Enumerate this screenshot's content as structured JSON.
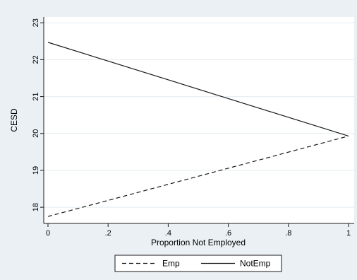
{
  "chart_data": {
    "type": "line",
    "xlabel": "Proportion Not Employed",
    "ylabel": "CESD",
    "xlim": [
      0,
      1
    ],
    "ylim": [
      17.6,
      23.1
    ],
    "x_ticks": [
      {
        "value": 0,
        "label": "0"
      },
      {
        "value": 0.2,
        "label": ".2"
      },
      {
        "value": 0.4,
        "label": ".4"
      },
      {
        "value": 0.6,
        "label": ".6"
      },
      {
        "value": 0.8,
        "label": ".8"
      },
      {
        "value": 1,
        "label": "1"
      }
    ],
    "y_ticks": [
      {
        "value": 18,
        "label": "18"
      },
      {
        "value": 19,
        "label": "19"
      },
      {
        "value": 20,
        "label": "20"
      },
      {
        "value": 21,
        "label": "21"
      },
      {
        "value": 22,
        "label": "22"
      },
      {
        "value": 23,
        "label": "23"
      }
    ],
    "grid": true,
    "legend_position": "bottom",
    "series": [
      {
        "name": "Emp",
        "style": "dashed",
        "x": [
          0,
          1
        ],
        "y": [
          17.75,
          19.93
        ]
      },
      {
        "name": "NotEmp",
        "style": "solid",
        "x": [
          0,
          1
        ],
        "y": [
          22.47,
          19.93
        ]
      }
    ]
  },
  "colors": {
    "outer_background": "#eaf0f4",
    "plot_background": "#ffffff",
    "gridline": "#e6ecf0",
    "line": "#1a1a1a"
  }
}
